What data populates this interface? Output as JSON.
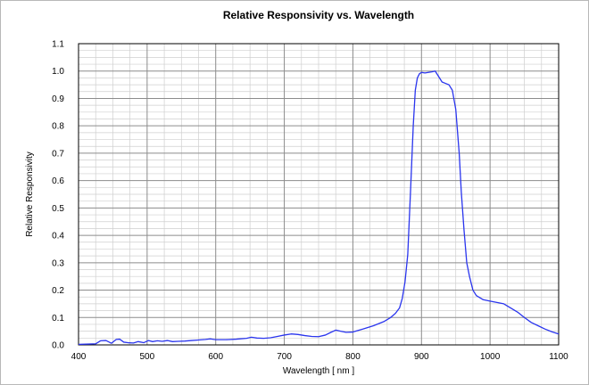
{
  "chart_data": {
    "type": "line",
    "title": "Relative Responsivity  vs.  Wavelength",
    "xlabel": "Wavelength   [ nm ]",
    "ylabel": "Relative Responsivity",
    "xlim": [
      400,
      1100
    ],
    "ylim": [
      0.0,
      1.1
    ],
    "x_ticks": [
      "400",
      "500",
      "600",
      "700",
      "800",
      "900",
      "1000",
      "1100"
    ],
    "y_ticks": [
      "0.0",
      "0.1",
      "0.2",
      "0.3",
      "0.4",
      "0.5",
      "0.6",
      "0.7",
      "0.8",
      "0.9",
      "1.0",
      "1.1"
    ],
    "x_tick_values": [
      400,
      500,
      600,
      700,
      800,
      900,
      1000,
      1100
    ],
    "y_tick_values": [
      0.0,
      0.1,
      0.2,
      0.3,
      0.4,
      0.5,
      0.6,
      0.7,
      0.8,
      0.9,
      1.0,
      1.1
    ],
    "grid": true,
    "minor_x_step": 25,
    "minor_y_step": 0.025,
    "legend": "none",
    "colors": {
      "line": "#2a35ee",
      "grid_major": "#8c8c8c",
      "grid_minor": "#cfcfcf",
      "axis": "#000000"
    },
    "series": [
      {
        "x": [
          400,
          415,
          425,
          432,
          440,
          448,
          455,
          460,
          466,
          472,
          480,
          487,
          495,
          502,
          508,
          515,
          522,
          530,
          537,
          545,
          555,
          565,
          575,
          585,
          592,
          600,
          615,
          630,
          645,
          652,
          660,
          670,
          680,
          690,
          700,
          710,
          720,
          730,
          740,
          750,
          760,
          768,
          775,
          782,
          790,
          800,
          815,
          830,
          845,
          855,
          862,
          868,
          872,
          876,
          880,
          884,
          888,
          891,
          894,
          897,
          900,
          905,
          910,
          915,
          920,
          925,
          930,
          935,
          940,
          945,
          950,
          955,
          958,
          962,
          966,
          970,
          975,
          980,
          990,
          1000,
          1010,
          1020,
          1030,
          1040,
          1050,
          1060,
          1070,
          1080,
          1090,
          1100
        ],
        "y": [
          0.002,
          0.003,
          0.004,
          0.015,
          0.016,
          0.006,
          0.02,
          0.021,
          0.01,
          0.008,
          0.007,
          0.012,
          0.008,
          0.016,
          0.012,
          0.015,
          0.013,
          0.016,
          0.012,
          0.013,
          0.014,
          0.016,
          0.018,
          0.02,
          0.022,
          0.019,
          0.019,
          0.021,
          0.024,
          0.028,
          0.025,
          0.024,
          0.026,
          0.031,
          0.036,
          0.04,
          0.038,
          0.034,
          0.031,
          0.03,
          0.036,
          0.046,
          0.054,
          0.05,
          0.046,
          0.047,
          0.058,
          0.07,
          0.085,
          0.1,
          0.115,
          0.135,
          0.17,
          0.23,
          0.33,
          0.56,
          0.8,
          0.93,
          0.975,
          0.99,
          0.995,
          0.993,
          0.995,
          0.997,
          1.0,
          0.98,
          0.96,
          0.955,
          0.95,
          0.93,
          0.86,
          0.7,
          0.56,
          0.42,
          0.3,
          0.25,
          0.2,
          0.18,
          0.165,
          0.16,
          0.155,
          0.15,
          0.135,
          0.12,
          0.1,
          0.082,
          0.07,
          0.058,
          0.048,
          0.04
        ]
      }
    ]
  }
}
